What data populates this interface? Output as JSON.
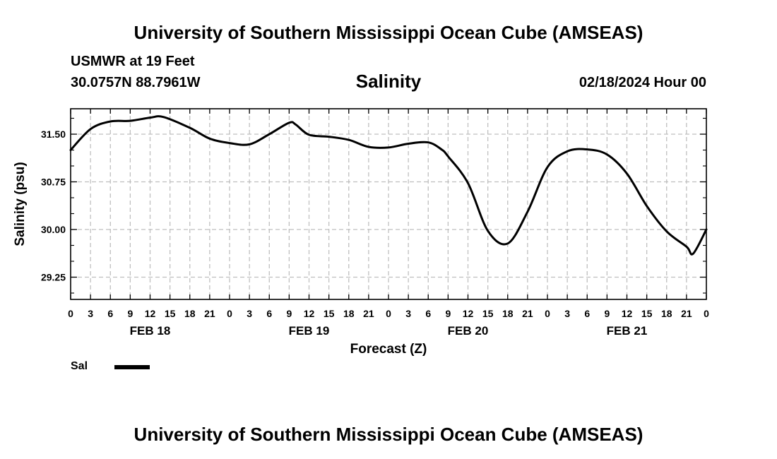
{
  "page": {
    "top_title": "University of Southern Mississippi Ocean Cube (AMSEAS)",
    "bottom_title": "University of Southern Mississippi Ocean Cube (AMSEAS)",
    "station_line1": "USMWR at 19 Feet",
    "station_line2": "30.0757N  88.7961W",
    "valid_time": "02/18/2024 Hour 00"
  },
  "colors": {
    "line": "#000000",
    "grid": "#bfbfbf",
    "frame": "#000000"
  },
  "chart_data": {
    "type": "line",
    "title": "Salinity",
    "xlabel": "Forecast (Z)",
    "ylabel": "Salinity (psu)",
    "xlim": [
      0,
      96
    ],
    "ylim": [
      28.9,
      31.9
    ],
    "grid": true,
    "x_tick_labels": [
      "0",
      "3",
      "6",
      "9",
      "12",
      "15",
      "18",
      "21",
      "0",
      "3",
      "6",
      "9",
      "12",
      "15",
      "18",
      "21",
      "0",
      "3",
      "6",
      "9",
      "12",
      "15",
      "18",
      "21",
      "0",
      "3",
      "6",
      "9",
      "12",
      "15",
      "18",
      "21",
      "0"
    ],
    "y_ticks": [
      29.25,
      30.0,
      30.75,
      31.5
    ],
    "y_tick_labels": [
      "29.25",
      "30.00",
      "30.75",
      "31.50"
    ],
    "date_labels": [
      {
        "label": "FEB 18",
        "hour": 12
      },
      {
        "label": "FEB 19",
        "hour": 36
      },
      {
        "label": "FEB 20",
        "hour": 60
      },
      {
        "label": "FEB 21",
        "hour": 84
      }
    ],
    "legend": [
      {
        "name": "Sal"
      }
    ],
    "series": [
      {
        "name": "Sal",
        "x": [
          0,
          3,
          6,
          9,
          12,
          14,
          18,
          21,
          24,
          27,
          30,
          33,
          34,
          36,
          39,
          42,
          45,
          48,
          51,
          54,
          56,
          57,
          60,
          63,
          66,
          69,
          72,
          75,
          78,
          81,
          84,
          87,
          90,
          93,
          94,
          96
        ],
        "y": [
          31.25,
          31.58,
          31.7,
          31.71,
          31.76,
          31.77,
          31.6,
          31.43,
          31.36,
          31.34,
          31.5,
          31.68,
          31.65,
          31.49,
          31.46,
          31.41,
          31.3,
          31.29,
          31.35,
          31.37,
          31.26,
          31.15,
          30.73,
          29.98,
          29.78,
          30.28,
          30.98,
          31.23,
          31.26,
          31.18,
          30.88,
          30.37,
          29.97,
          29.73,
          29.62,
          30.0
        ]
      }
    ]
  }
}
